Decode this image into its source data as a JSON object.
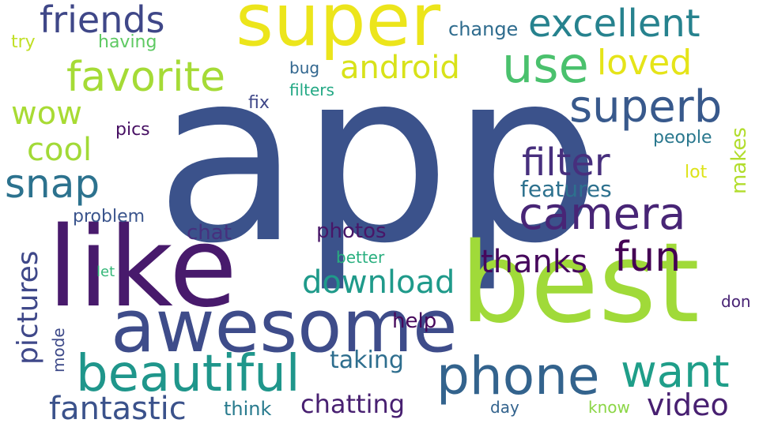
{
  "words": [
    {
      "text": "app",
      "color": "#3b528b"
    },
    {
      "text": "best",
      "color": "#a0da39"
    },
    {
      "text": "like",
      "color": "#481a6c"
    },
    {
      "text": "super",
      "color": "#ece51b"
    },
    {
      "text": "awesome",
      "color": "#3e4c8a"
    },
    {
      "text": "beautiful",
      "color": "#1f968b"
    },
    {
      "text": "phone",
      "color": "#33638d"
    },
    {
      "text": "camera",
      "color": "#482576"
    },
    {
      "text": "use",
      "color": "#4ac16d"
    },
    {
      "text": "favorite",
      "color": "#a5db36"
    },
    {
      "text": "excellent",
      "color": "#26828e"
    },
    {
      "text": "superb",
      "color": "#38598c"
    },
    {
      "text": "friends",
      "color": "#3f4788"
    },
    {
      "text": "want",
      "color": "#1f9e89"
    },
    {
      "text": "snap",
      "color": "#2c728e"
    },
    {
      "text": "fantastic",
      "color": "#3b528b"
    },
    {
      "text": "filter",
      "color": "#472f7d"
    },
    {
      "text": "fun",
      "color": "#440154"
    },
    {
      "text": "download",
      "color": "#1f9a8a"
    },
    {
      "text": "loved",
      "color": "#e5e419"
    },
    {
      "text": "android",
      "color": "#d8e219"
    },
    {
      "text": "video",
      "color": "#482071"
    },
    {
      "text": "thanks",
      "color": "#46085c"
    },
    {
      "text": "cool",
      "color": "#a2da37"
    },
    {
      "text": "wow",
      "color": "#a8db34"
    },
    {
      "text": "pictures",
      "color": "#3f4889"
    },
    {
      "text": "chatting",
      "color": "#482071"
    },
    {
      "text": "features",
      "color": "#2d718e"
    },
    {
      "text": "taking",
      "color": "#2e6e8e"
    },
    {
      "text": "photos",
      "color": "#481668"
    },
    {
      "text": "help",
      "color": "#46085c"
    },
    {
      "text": "chat",
      "color": "#46307e"
    },
    {
      "text": "think",
      "color": "#297b8e"
    },
    {
      "text": "change",
      "color": "#2f6c8e"
    },
    {
      "text": "makes",
      "color": "#b2dd2d"
    },
    {
      "text": "pics",
      "color": "#471063"
    },
    {
      "text": "problem",
      "color": "#3a548c"
    },
    {
      "text": "people",
      "color": "#2a788e"
    },
    {
      "text": "fix",
      "color": "#3f4788"
    },
    {
      "text": "bug",
      "color": "#31668e"
    },
    {
      "text": "filters",
      "color": "#22a884"
    },
    {
      "text": "having",
      "color": "#5ec962"
    },
    {
      "text": "lot",
      "color": "#dde318"
    },
    {
      "text": "try",
      "color": "#c0df25"
    },
    {
      "text": "better",
      "color": "#29af7f"
    },
    {
      "text": "let",
      "color": "#35b779"
    },
    {
      "text": "mode",
      "color": "#3e4a89"
    },
    {
      "text": "day",
      "color": "#33638d"
    },
    {
      "text": "know",
      "color": "#8bd646"
    },
    {
      "text": "don",
      "color": "#482374"
    }
  ]
}
